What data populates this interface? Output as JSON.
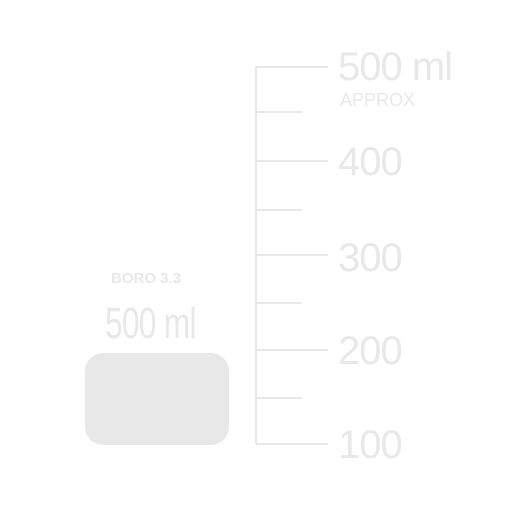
{
  "graduation": {
    "top_label": "500 ml",
    "approx_label": "APPROX",
    "labels": [
      "400",
      "300",
      "200",
      "100"
    ]
  },
  "beaker_marking": {
    "material": "BORO 3.3",
    "capacity": "500 ml"
  },
  "colors": {
    "marking": "#e8e8e8",
    "background": "#ffffff"
  }
}
